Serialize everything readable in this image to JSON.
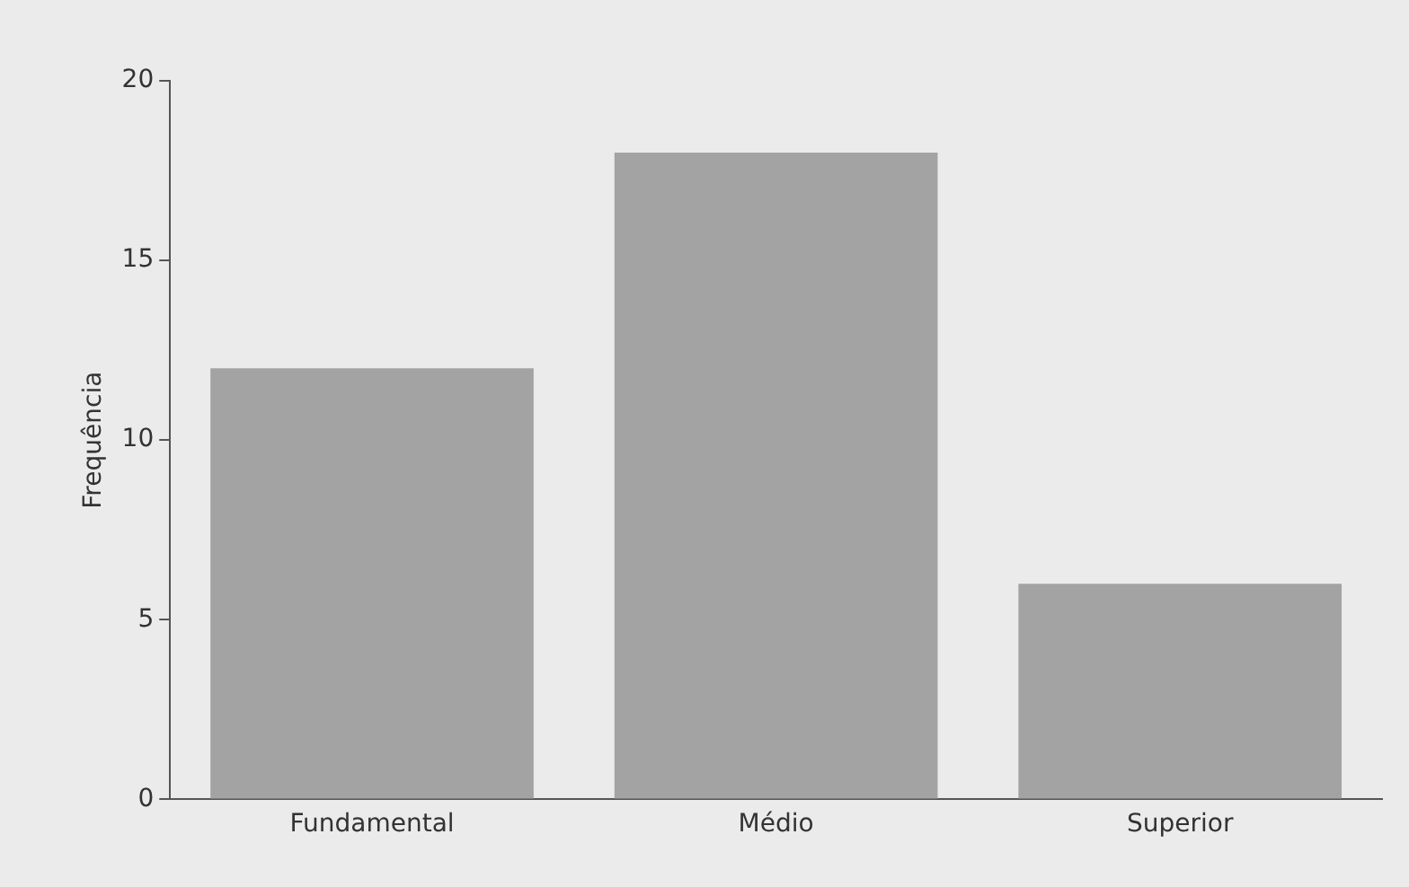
{
  "chart_data": {
    "type": "bar",
    "ylabel": "Frequência",
    "categories": [
      "Fundamental",
      "Médio",
      "Superior"
    ],
    "values": [
      12,
      18,
      6
    ],
    "color": "#a3a3a3",
    "ylim": [
      0,
      20
    ],
    "yticks": [
      0,
      5,
      10,
      15,
      20
    ],
    "grid": false,
    "legend": false
  }
}
